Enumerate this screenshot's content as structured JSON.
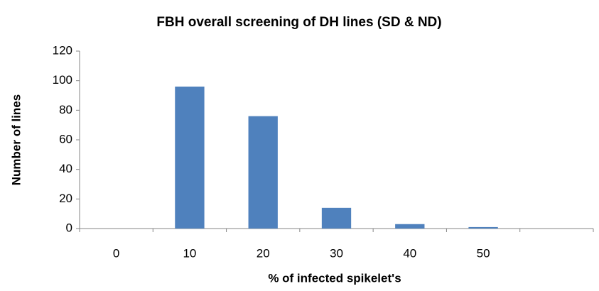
{
  "chart_data": {
    "type": "bar",
    "title": "FBH overall screening of DH lines (SD & ND)",
    "x_label": "% of infected spikelet's",
    "y_label": "Number of lines",
    "categories": [
      "0",
      "10",
      "20",
      "30",
      "40",
      "50",
      null
    ],
    "values": [
      0,
      96,
      76,
      14,
      3,
      1,
      0
    ],
    "color": "#4f81bd",
    "ylim": [
      0,
      120
    ],
    "yticks": [
      0,
      20,
      40,
      60,
      80,
      100,
      120
    ],
    "grid": false
  }
}
